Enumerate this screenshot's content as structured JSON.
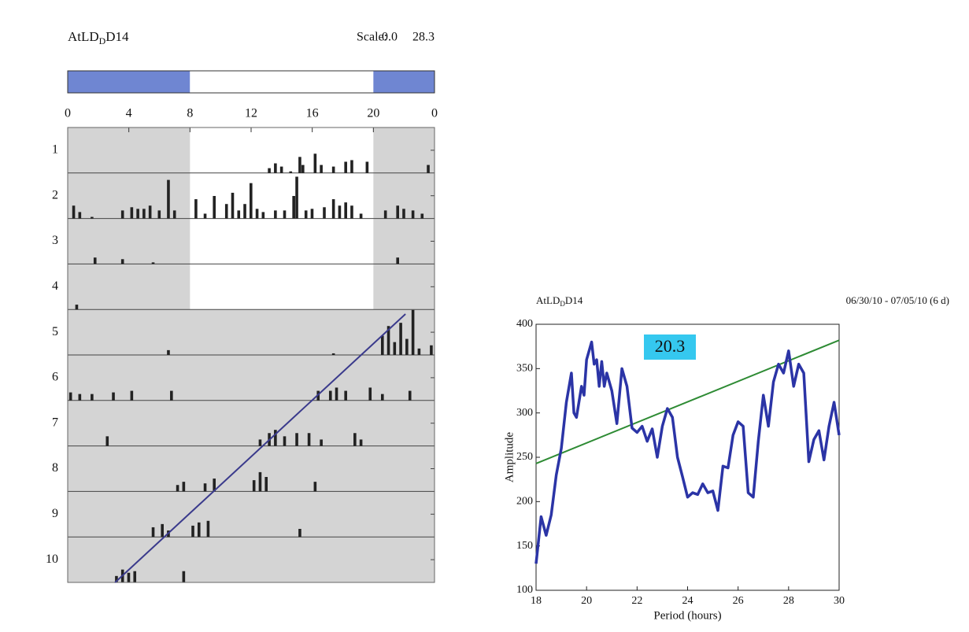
{
  "chart_data": [
    {
      "type": "actogram",
      "title": "AtLD",
      "title_sub": "D",
      "title_suffix": "D14",
      "scale": {
        "label": "Scale:",
        "min": {
          "value": 0,
          "label": "0.0"
        },
        "max": 28.3
      },
      "xlim": [
        0,
        24
      ],
      "xticks": [
        0,
        4,
        8,
        12,
        16,
        20,
        {
          "value": 24,
          "label": "0"
        }
      ],
      "ylim": [
        0.5,
        10.5
      ],
      "days": [
        1,
        2,
        3,
        4,
        5,
        6,
        7,
        8,
        9,
        10
      ],
      "light_period": [
        8,
        20
      ],
      "light_days": 4,
      "dark_color": "#6f86d2",
      "light_color": "#ffffff",
      "shade_color": "#d4d4d4",
      "bar_color": "#222222",
      "activity": [
        [
          [
            13.2,
            3
          ],
          [
            13.6,
            6
          ],
          [
            14.0,
            4
          ],
          [
            14.6,
            1
          ],
          [
            15.2,
            10
          ],
          [
            15.4,
            5
          ],
          [
            16.2,
            12
          ],
          [
            16.6,
            5
          ],
          [
            17.4,
            4
          ],
          [
            18.2,
            7
          ],
          [
            18.6,
            8
          ],
          [
            19.6,
            7
          ],
          [
            23.6,
            5
          ]
        ],
        [
          [
            0.4,
            8
          ],
          [
            0.8,
            4
          ],
          [
            1.6,
            1
          ],
          [
            3.6,
            5
          ],
          [
            4.2,
            7
          ],
          [
            4.6,
            6
          ],
          [
            5.0,
            6
          ],
          [
            5.4,
            8
          ],
          [
            6.0,
            5
          ],
          [
            6.6,
            24
          ],
          [
            7.0,
            5
          ],
          [
            8.4,
            12
          ],
          [
            9.0,
            3
          ],
          [
            9.6,
            14
          ],
          [
            10.4,
            9
          ],
          [
            10.8,
            16
          ],
          [
            11.2,
            5
          ],
          [
            11.6,
            9
          ],
          [
            12.0,
            22
          ],
          [
            12.4,
            6
          ],
          [
            12.8,
            4
          ],
          [
            13.6,
            5
          ],
          [
            14.2,
            5
          ],
          [
            14.8,
            14
          ],
          [
            15.0,
            26
          ],
          [
            15.6,
            5
          ],
          [
            16.0,
            6
          ],
          [
            16.8,
            7
          ],
          [
            17.4,
            12
          ],
          [
            17.8,
            8
          ],
          [
            18.2,
            10
          ],
          [
            18.6,
            8
          ],
          [
            19.2,
            3
          ],
          [
            20.8,
            5
          ],
          [
            21.6,
            8
          ],
          [
            22.0,
            6
          ],
          [
            22.6,
            5
          ],
          [
            23.2,
            3
          ]
        ],
        [
          [
            1.8,
            4
          ],
          [
            3.6,
            3
          ],
          [
            5.6,
            1
          ],
          [
            21.6,
            4
          ]
        ],
        [
          [
            0.6,
            3
          ]
        ],
        [
          [
            6.6,
            3
          ],
          [
            17.4,
            1
          ],
          [
            20.6,
            12
          ],
          [
            21.0,
            18
          ],
          [
            21.4,
            8
          ],
          [
            21.8,
            20
          ],
          [
            22.2,
            10
          ],
          [
            22.6,
            28
          ],
          [
            23.0,
            4
          ],
          [
            23.8,
            6
          ]
        ],
        [
          [
            0.2,
            5
          ],
          [
            0.8,
            4
          ],
          [
            1.6,
            4
          ],
          [
            3.0,
            5
          ],
          [
            4.2,
            6
          ],
          [
            6.8,
            6
          ],
          [
            16.4,
            6
          ],
          [
            17.2,
            6
          ],
          [
            17.6,
            8
          ],
          [
            18.2,
            6
          ],
          [
            19.8,
            8
          ],
          [
            20.6,
            4
          ],
          [
            22.4,
            6
          ]
        ],
        [
          [
            2.6,
            6
          ],
          [
            12.6,
            4
          ],
          [
            13.2,
            8
          ],
          [
            13.6,
            10
          ],
          [
            14.2,
            6
          ],
          [
            15.0,
            8
          ],
          [
            15.8,
            8
          ],
          [
            16.6,
            4
          ],
          [
            18.8,
            8
          ],
          [
            19.2,
            4
          ]
        ],
        [
          [
            7.2,
            4
          ],
          [
            7.6,
            6
          ],
          [
            9.0,
            5
          ],
          [
            9.6,
            8
          ],
          [
            12.2,
            7
          ],
          [
            12.6,
            12
          ],
          [
            13.0,
            9
          ],
          [
            16.2,
            6
          ]
        ],
        [
          [
            5.6,
            6
          ],
          [
            6.2,
            8
          ],
          [
            6.6,
            4
          ],
          [
            8.2,
            7
          ],
          [
            8.6,
            9
          ],
          [
            9.2,
            10
          ],
          [
            15.2,
            5
          ]
        ],
        [
          [
            3.2,
            4
          ],
          [
            3.6,
            8
          ],
          [
            4.0,
            6
          ],
          [
            4.4,
            7
          ],
          [
            7.6,
            7
          ]
        ]
      ],
      "fit_line": {
        "x": [
          3.1,
          22.1
        ],
        "y": [
          10.5,
          4.6
        ],
        "color": "#3a3a8c"
      }
    },
    {
      "type": "line",
      "title": "AtLD",
      "title_sub": "D",
      "title_suffix": "D14",
      "subtitle": "06/30/10 - 07/05/10  (6 d)",
      "x_label": "Period (hours)",
      "y_label": "Amplitude",
      "xlim": [
        18,
        30
      ],
      "xticks": [
        18,
        20,
        22,
        24,
        26,
        28,
        30
      ],
      "ylim": [
        100,
        400
      ],
      "yticks": [
        100,
        150,
        200,
        250,
        300,
        350,
        400
      ],
      "x": [
        18.0,
        18.2,
        18.4,
        18.6,
        18.8,
        19.0,
        19.2,
        19.4,
        19.5,
        19.6,
        19.8,
        19.9,
        20.0,
        20.2,
        20.3,
        20.4,
        20.5,
        20.6,
        20.7,
        20.8,
        21.0,
        21.2,
        21.4,
        21.6,
        21.8,
        22.0,
        22.2,
        22.4,
        22.6,
        22.8,
        23.0,
        23.2,
        23.4,
        23.6,
        23.8,
        24.0,
        24.2,
        24.4,
        24.6,
        24.8,
        25.0,
        25.2,
        25.4,
        25.6,
        25.8,
        26.0,
        26.2,
        26.4,
        26.6,
        26.8,
        27.0,
        27.2,
        27.4,
        27.6,
        27.8,
        28.0,
        28.2,
        28.4,
        28.6,
        28.8,
        29.0,
        29.2,
        29.4,
        29.6,
        29.8,
        30.0
      ],
      "series": [
        {
          "color": "#2b34a6",
          "values": [
            130,
            183,
            162,
            185,
            230,
            260,
            312,
            345,
            300,
            295,
            330,
            320,
            360,
            380,
            355,
            360,
            330,
            358,
            330,
            345,
            325,
            288,
            350,
            330,
            283,
            278,
            285,
            268,
            282,
            250,
            285,
            305,
            295,
            250,
            228,
            205,
            210,
            208,
            220,
            210,
            212,
            190,
            240,
            238,
            275,
            290,
            285,
            210,
            205,
            268,
            320,
            285,
            335,
            355,
            345,
            370,
            330,
            355,
            345,
            245,
            270,
            280,
            247,
            285,
            312,
            275
          ]
        }
      ],
      "trend": {
        "x": [
          18,
          30
        ],
        "y": [
          243,
          382
        ],
        "color": "#2e8b34"
      },
      "annotation": {
        "text": "20.3",
        "color": "#35c8ef"
      }
    }
  ]
}
